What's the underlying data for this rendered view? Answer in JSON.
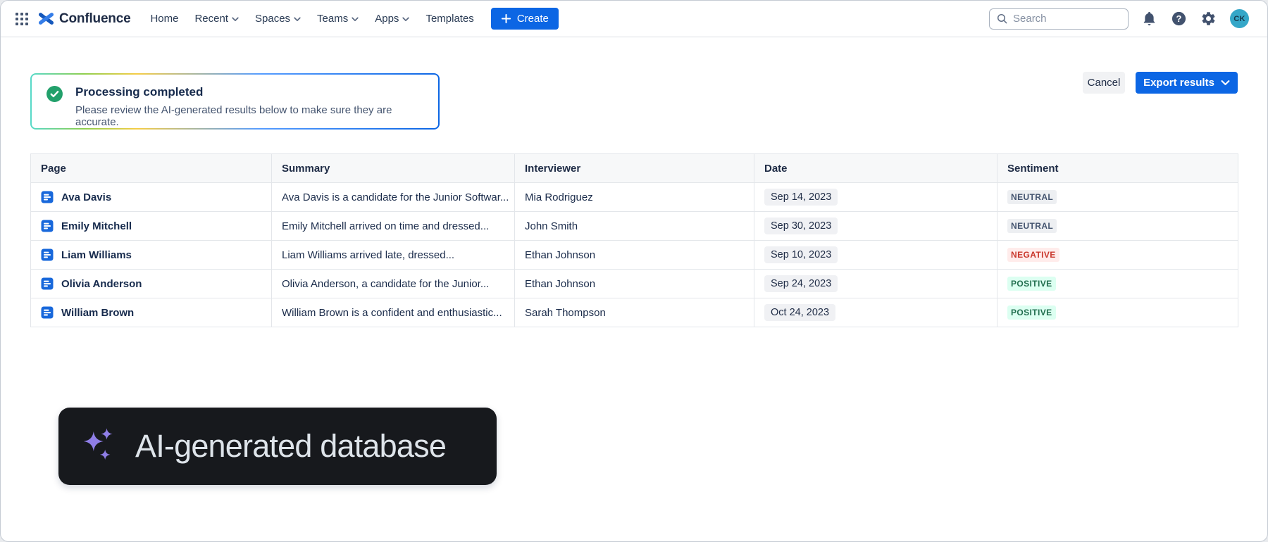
{
  "nav": {
    "brand": "Confluence",
    "items": [
      {
        "label": "Home",
        "chevron": false
      },
      {
        "label": "Recent",
        "chevron": true
      },
      {
        "label": "Spaces",
        "chevron": true
      },
      {
        "label": "Teams",
        "chevron": true
      },
      {
        "label": "Apps",
        "chevron": true
      },
      {
        "label": "Templates",
        "chevron": false
      }
    ],
    "create_label": "Create",
    "search": {
      "placeholder": "Search"
    },
    "avatar_initials": "CK"
  },
  "banner": {
    "title": "Processing completed",
    "description": "Please review the AI-generated results below to make sure they are accurate."
  },
  "actions": {
    "cancel_label": "Cancel",
    "export_label": "Export results"
  },
  "table": {
    "columns": [
      "Page",
      "Summary",
      "Interviewer",
      "Date",
      "Sentiment"
    ],
    "rows": [
      {
        "page": "Ava Davis",
        "summary": "Ava Davis is a candidate for the Junior Softwar...",
        "interviewer": "Mia Rodriguez",
        "date": "Sep 14, 2023",
        "sentiment": "NEUTRAL"
      },
      {
        "page": "Emily Mitchell",
        "summary": "Emily Mitchell arrived on time and dressed...",
        "interviewer": "John Smith",
        "date": "Sep 30, 2023",
        "sentiment": "NEUTRAL"
      },
      {
        "page": "Liam Williams",
        "summary": "Liam Williams arrived late, dressed...",
        "interviewer": "Ethan Johnson",
        "date": "Sep 10, 2023",
        "sentiment": "NEGATIVE"
      },
      {
        "page": "Olivia Anderson",
        "summary": "Olivia Anderson, a candidate for the Junior...",
        "interviewer": "Ethan Johnson",
        "date": "Sep 24, 2023",
        "sentiment": "POSITIVE"
      },
      {
        "page": "William Brown",
        "summary": "William Brown is a confident and enthusiastic...",
        "interviewer": "Sarah Thompson",
        "date": "Oct 24, 2023",
        "sentiment": "POSITIVE"
      }
    ]
  },
  "tooltip": {
    "label": "AI-generated database"
  },
  "colors": {
    "accent_blue": "#0C66E4",
    "success_green": "#22A06B",
    "ai_sparkle_purple": "#8F7EE7",
    "tooltip_bg": "#17191D",
    "sentiment_neutral_bg": "#EDEFF2",
    "sentiment_neutral_text": "#44546F",
    "sentiment_negative_bg": "#FFECEB",
    "sentiment_negative_text": "#C9372C",
    "sentiment_positive_bg": "#DCFFF1",
    "sentiment_positive_text": "#216E4E"
  }
}
